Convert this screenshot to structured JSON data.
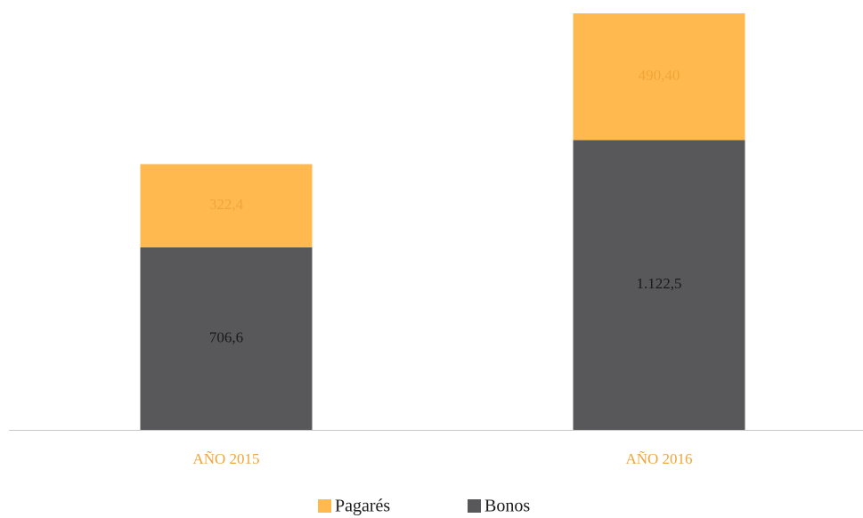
{
  "chart_data": {
    "type": "stacked_bar",
    "categories": [
      "AÑO 2015",
      "AÑO 2016"
    ],
    "series": [
      {
        "name": "Bonos",
        "color": "#58585a",
        "values": [
          706.6,
          1122.5
        ],
        "value_labels": [
          "706,6",
          "1.122,5"
        ]
      },
      {
        "name": "Pagarés",
        "color": "#ffb94f",
        "values": [
          322.4,
          490.4
        ],
        "value_labels": [
          "322,4",
          "490,40"
        ]
      }
    ],
    "legend": "bottom"
  }
}
